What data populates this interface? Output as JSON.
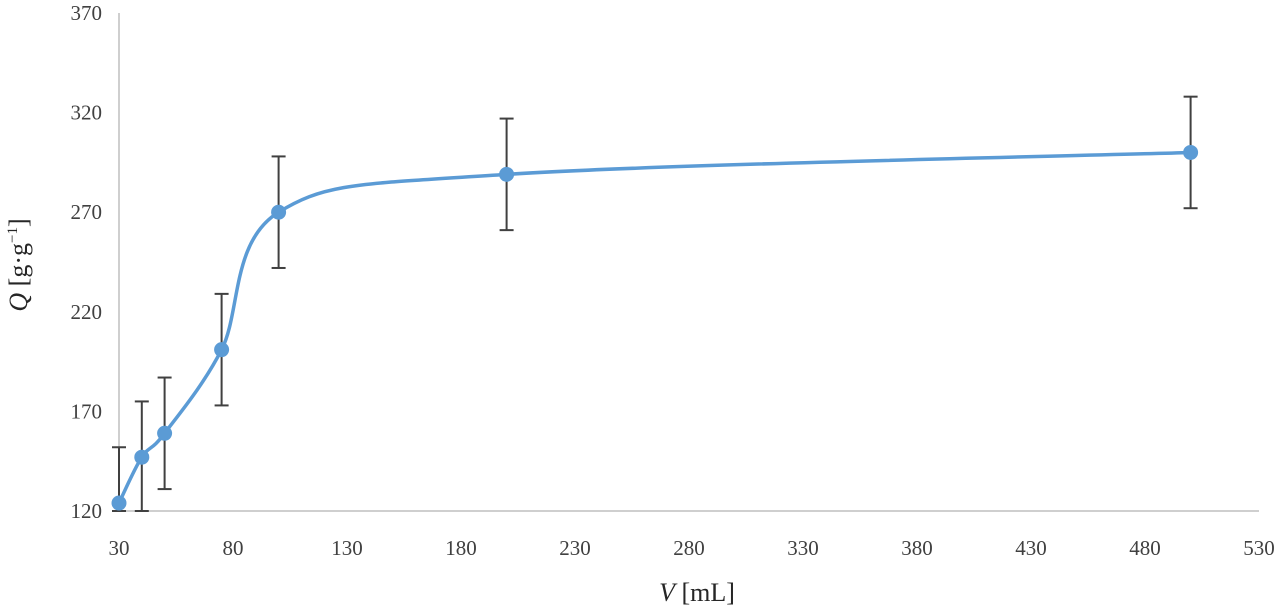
{
  "chart_data": {
    "type": "line",
    "smooth": true,
    "markers": true,
    "error_bars": true,
    "grid": false,
    "x_label": {
      "symbol": "V",
      "unit": " [mL]"
    },
    "y_label": {
      "symbol": "Q",
      "unit": " [g·g",
      "unit_sup": "−1",
      "unit_close": "]"
    },
    "xlim": [
      30,
      530
    ],
    "ylim": [
      120,
      370
    ],
    "x_ticks": [
      "30",
      "80",
      "130",
      "180",
      "230",
      "280",
      "330",
      "380",
      "430",
      "480",
      "530"
    ],
    "y_ticks": [
      "120",
      "170",
      "220",
      "270",
      "320",
      "370"
    ],
    "series": [
      {
        "color": "#5b9bd5",
        "points": [
          {
            "x": 30,
            "y": 124,
            "err": 28
          },
          {
            "x": 40,
            "y": 147,
            "err": 28
          },
          {
            "x": 50,
            "y": 159,
            "err": 28
          },
          {
            "x": 75,
            "y": 201,
            "err": 28
          },
          {
            "x": 100,
            "y": 270,
            "err": 28
          },
          {
            "x": 200,
            "y": 289,
            "err": 28
          },
          {
            "x": 500,
            "y": 300,
            "err": 28
          }
        ]
      }
    ],
    "axis_color": "#bfbfbf",
    "error_bar_color": "#404040"
  }
}
